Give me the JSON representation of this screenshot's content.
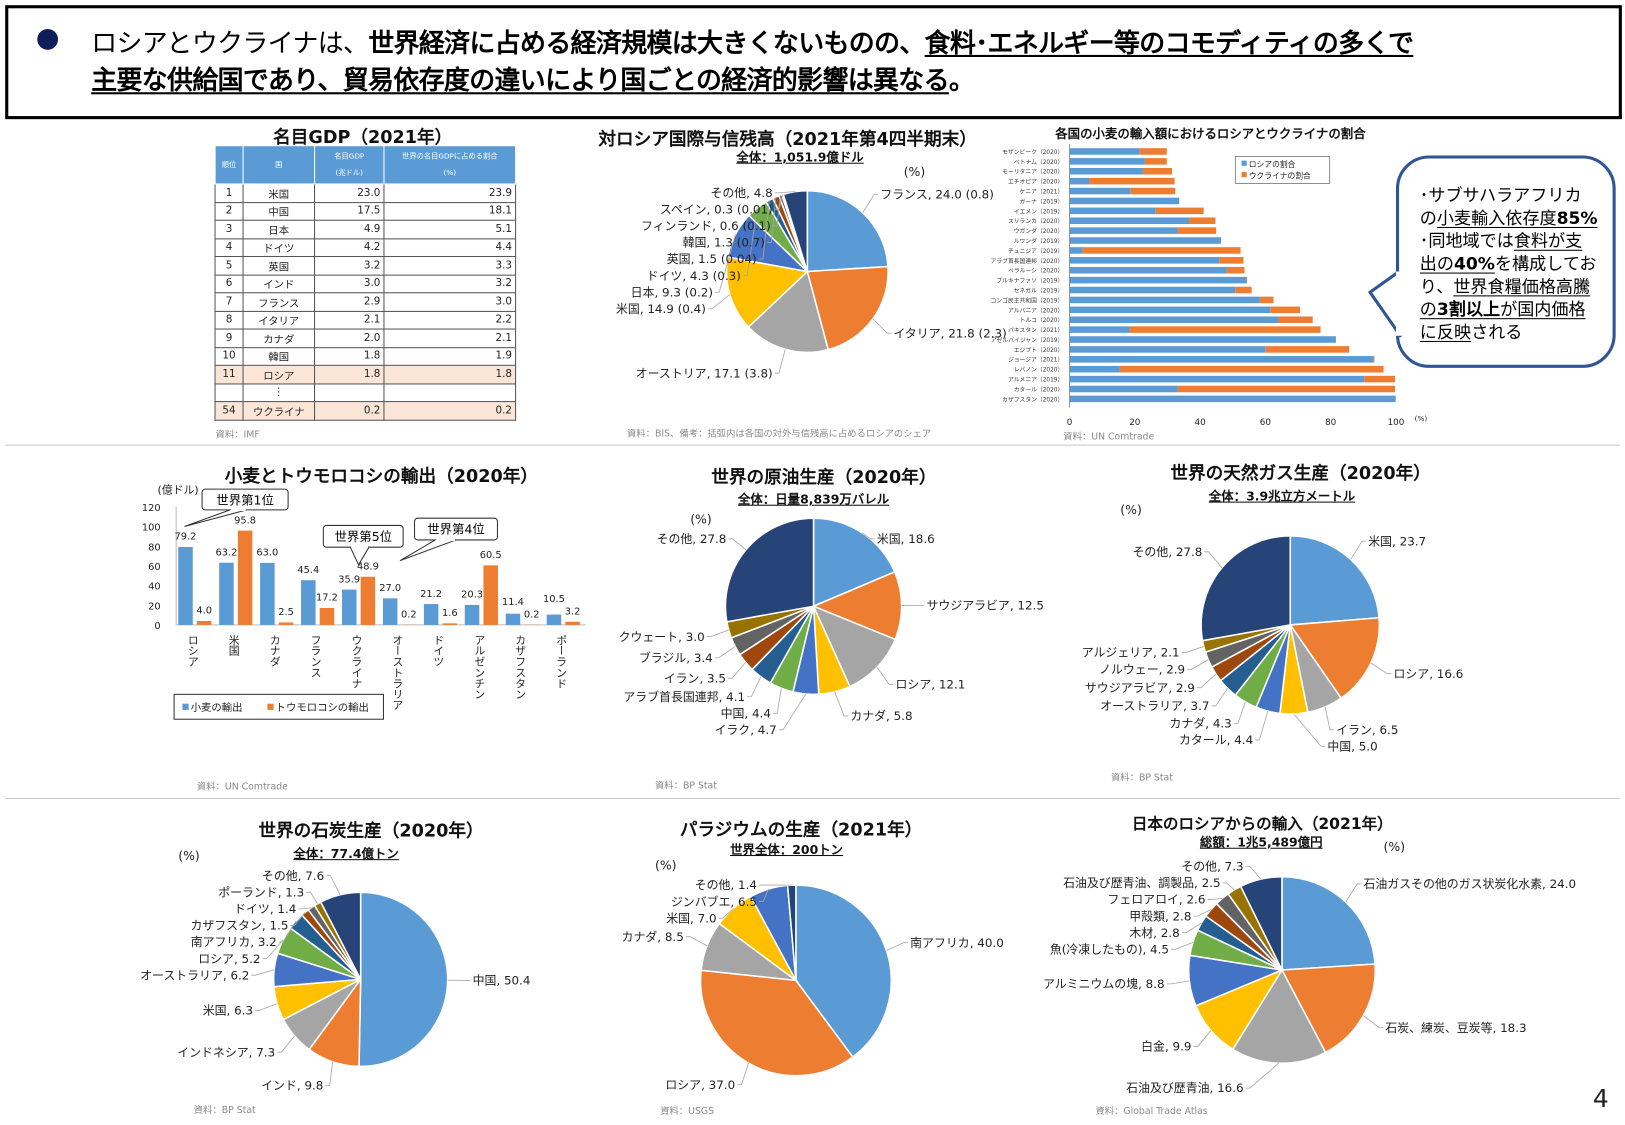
{
  "header": {
    "line1": [
      {
        "text": "ロシアとウクライナは、",
        "style": ""
      },
      {
        "text": "世界経済に占める経済規模は大きくないものの、",
        "style": "b"
      },
      {
        "text": "食料･エネルギー等のコモディティの多くで",
        "style": "b u"
      }
    ],
    "line2": [
      {
        "text": "主要な供給国であり、貿易依存度の違いにより国ごとの経済的影響は異なる",
        "style": "b u"
      },
      {
        "text": "。",
        "style": "b"
      }
    ]
  },
  "palette": [
    "#5B9BD5",
    "#ED7D31",
    "#A5A5A5",
    "#FFC000",
    "#4472C4",
    "#70AD47",
    "#255E91",
    "#9E480E",
    "#636363",
    "#997300",
    "#264478"
  ],
  "bubble": [
    {
      "text": "･サブサハラアフリカの",
      "style": ""
    },
    {
      "text": "小麦輸入依存度",
      "style": "u"
    },
    {
      "text": "85%",
      "style": "b u"
    },
    {
      "text": " ･同地域では",
      "style": ""
    },
    {
      "text": "食料が支出の",
      "style": "u"
    },
    {
      "text": "40%",
      "style": "b u"
    },
    {
      "text": "を構成しており、",
      "style": ""
    },
    {
      "text": "世界食糧価格高騰の",
      "style": "u"
    },
    {
      "text": "3割以上",
      "style": "b u"
    },
    {
      "text": "が国内価格に反映",
      "style": "u"
    },
    {
      "text": "される",
      "style": ""
    }
  ],
  "page_number": "4",
  "chart_data": [
    {
      "type": "table",
      "title": "名目GDP（2021年）",
      "columns": [
        "順位",
        "国",
        "名目GDP",
        "(兆ドル)",
        "世界の名目GDPに占める割合",
        "(%)"
      ],
      "rows": [
        [
          "1",
          "米国",
          "23.0",
          "23.9"
        ],
        [
          "2",
          "中国",
          "17.5",
          "18.1"
        ],
        [
          "3",
          "日本",
          "4.9",
          "5.1"
        ],
        [
          "4",
          "ドイツ",
          "4.2",
          "4.4"
        ],
        [
          "5",
          "英国",
          "3.2",
          "3.3"
        ],
        [
          "6",
          "インド",
          "3.0",
          "3.2"
        ],
        [
          "7",
          "フランス",
          "2.9",
          "3.0"
        ],
        [
          "8",
          "イタリア",
          "2.1",
          "2.2"
        ],
        [
          "9",
          "カナダ",
          "2.0",
          "2.1"
        ],
        [
          "10",
          "韓国",
          "1.8",
          "1.9"
        ],
        [
          "11",
          "ロシア",
          "1.8",
          "1.8"
        ],
        [
          "",
          "⋮",
          "",
          ""
        ],
        [
          "54",
          "ウクライナ",
          "0.2",
          "0.2"
        ]
      ],
      "highlight_rows": [
        "11",
        "54"
      ],
      "source": "資料：IMF"
    },
    {
      "type": "pie",
      "title": "対ロシア国際与信残高（2021年第4四半期末）",
      "subtitle": "全体：1,051.9億ドル",
      "unit": "(%)",
      "labels": [
        "フランス",
        "イタリア",
        "オーストリア",
        "米国",
        "日本",
        "ドイツ",
        "英国",
        "韓国",
        "フィンランド",
        "スペイン",
        "その他"
      ],
      "values": [
        24.0,
        21.8,
        17.1,
        14.9,
        9.3,
        4.3,
        1.5,
        1.3,
        0.6,
        0.3,
        4.8
      ],
      "sublabels": [
        "(0.8)",
        "(2.3)",
        "(3.8)",
        "(0.4)",
        "(0.2)",
        "(0.3)",
        "(0.04)",
        "(0.7)",
        "(0.1)",
        "(0.01)",
        ""
      ],
      "source": "資料：BIS、備考：括弧内は各国の対外与信残高に占めるロシアのシェア"
    },
    {
      "type": "bar",
      "orientation": "horizontal",
      "stacked": true,
      "title": "各国の小麦の輸入額におけるロシアとウクライナの割合",
      "categories": [
        "モザンビーク（2020）",
        "ベトナム（2020）",
        "モーリタニア（2020）",
        "エチオピア（2020）",
        "ケニア（2021）",
        "ガーナ（2019）",
        "イエメン（2019）",
        "スリランカ（2020）",
        "ウガンダ（2020）",
        "ルワンダ（2019）",
        "チュニジア（2019）",
        "アラブ首長国連邦（2020）",
        "ベラルーシ（2020）",
        "ブルキナファソ（2019）",
        "セネガル（2019）",
        "コンゴ民主共和国（2019）",
        "アルバニア（2020）",
        "トルコ（2020）",
        "パキスタン（2021）",
        "アゼルバイジャン（2019）",
        "エジプト（2020）",
        "ジョージア（2021）",
        "レバノン（2020）",
        "アルメニア（2019）",
        "カタール（2020）",
        "カザフスタン（2020）"
      ],
      "series": [
        {
          "name": "ロシアの割合",
          "color": "#5B9BD5",
          "values": [
            21.5,
            23.1,
            22.5,
            6.1,
            18.6,
            33.6,
            26.4,
            36.6,
            33.1,
            46.4,
            4.0,
            45.9,
            48.2,
            54.2,
            50.8,
            58.3,
            61.5,
            64.0,
            18.4,
            81.6,
            60.1,
            93.1,
            15.3,
            90.3,
            33.1,
            99.9
          ]
        },
        {
          "name": "ウクライナの割合",
          "color": "#ED7D31",
          "values": [
            8.3,
            6.7,
            8.9,
            26.1,
            13.8,
            0,
            14.7,
            8.1,
            11.8,
            0,
            48.4,
            7.4,
            5.4,
            0.2,
            5.0,
            4.2,
            9.1,
            10.5,
            58.5,
            0,
            25.6,
            0.3,
            80.9,
            9.4,
            66.6,
            0
          ]
        }
      ],
      "xlim": [
        0,
        100
      ],
      "xticks": [
        0,
        20,
        40,
        60,
        80,
        100
      ],
      "xlabel": "(%)",
      "legend": "top-right",
      "source": "資料：UN Comtrade"
    },
    {
      "type": "bar",
      "title": "小麦とトウモロコシの輸出（2020年）",
      "ylabel": "(億ドル)",
      "categories": [
        "ロシア",
        "米国",
        "カナダ",
        "フランス",
        "ウクライナ",
        "オーストラリア",
        "ドイツ",
        "アルゼンチン",
        "カザフスタン",
        "ポーランド"
      ],
      "series": [
        {
          "name": "小麦の輸出",
          "color": "#5B9BD5",
          "values": [
            79.2,
            63.2,
            63.0,
            45.4,
            35.9,
            27.0,
            21.2,
            20.3,
            11.4,
            10.5
          ]
        },
        {
          "name": "トウモロコシの輸出",
          "color": "#ED7D31",
          "values": [
            4.0,
            95.8,
            2.5,
            17.2,
            48.9,
            0.2,
            1.6,
            60.5,
            0.2,
            3.2
          ]
        }
      ],
      "ylim": [
        0,
        120
      ],
      "yticks": [
        0,
        20,
        40,
        60,
        80,
        100,
        120
      ],
      "annotations": [
        "世界第1位",
        "世界第5位",
        "世界第4位"
      ],
      "legend": "bottom",
      "source": "資料：UN Comtrade"
    },
    {
      "type": "pie",
      "title": "世界の原油生産（2020年）",
      "subtitle": "全体：日量8,839万バレル",
      "unit": "(%)",
      "labels": [
        "米国",
        "サウジアラビア",
        "ロシア",
        "カナダ",
        "イラク",
        "中国",
        "アラブ首長国連邦",
        "イラン",
        "ブラジル",
        "クウェート",
        "その他"
      ],
      "values": [
        18.6,
        12.5,
        12.1,
        5.8,
        4.7,
        4.4,
        4.1,
        3.5,
        3.4,
        3.0,
        27.8
      ],
      "source": "資料：BP Stat"
    },
    {
      "type": "pie",
      "title": "世界の天然ガス生産（2020年）",
      "subtitle": "全体：3.9兆立方メートル",
      "unit": "(%)",
      "labels": [
        "米国",
        "ロシア",
        "イラン",
        "中国",
        "カタール",
        "カナダ",
        "オーストラリア",
        "サウジアラビア",
        "ノルウェー",
        "アルジェリア",
        "その他"
      ],
      "values": [
        23.7,
        16.6,
        6.5,
        5.0,
        4.4,
        4.3,
        3.7,
        2.9,
        2.9,
        2.1,
        27.8
      ],
      "source": "資料：BP Stat"
    },
    {
      "type": "pie",
      "title": "世界の石炭生産（2020年）",
      "subtitle": "全体：77.4億トン",
      "unit": "(%)",
      "labels": [
        "中国",
        "インド",
        "インドネシア",
        "米国",
        "オーストラリア",
        "ロシア",
        "南アフリカ",
        "カザフスタン",
        "ドイツ",
        "ポーランド",
        "その他"
      ],
      "values": [
        50.4,
        9.8,
        7.3,
        6.3,
        6.2,
        5.2,
        3.2,
        1.5,
        1.4,
        1.3,
        7.6
      ],
      "source": "資料：BP Stat"
    },
    {
      "type": "pie",
      "title": "パラジウムの生産（2021年）",
      "subtitle": "世界全体：200トン",
      "unit": "(%)",
      "labels": [
        "南アフリカ",
        "ロシア",
        "カナダ",
        "米国",
        "ジンバブエ",
        "その他"
      ],
      "values": [
        40.0,
        37.0,
        8.5,
        7.0,
        6.5,
        1.4
      ],
      "source": "資料：USGS"
    },
    {
      "type": "pie",
      "title": "日本のロシアからの輸入（2021年）",
      "subtitle": "総額：1兆5,489億円",
      "unit": "(%)",
      "labels": [
        "石油ガスその他のガス状炭化水素",
        "石炭、練炭、豆炭等",
        "石油及び歴青油",
        "白金",
        "アルミニウムの塊",
        "魚(冷凍したもの)",
        "木材",
        "甲殻類",
        "フェロアロイ",
        "石油及び歴青油、調製品",
        "その他"
      ],
      "values": [
        24.0,
        18.3,
        16.6,
        9.9,
        8.8,
        4.5,
        2.8,
        2.8,
        2.6,
        2.5,
        7.3
      ],
      "source": "資料：Global Trade Atlas"
    }
  ]
}
